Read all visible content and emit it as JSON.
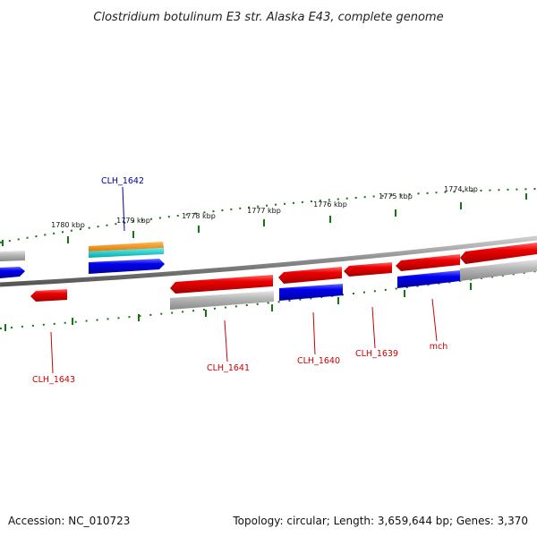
{
  "title": "Clostridium botulinum E3 str. Alaska E43, complete genome",
  "footer": {
    "accession": "Accession: NC_010723",
    "summary": "Topology: circular; Length: 3,659,644 bp; Genes: 3,370"
  },
  "ticks": [
    "1780 kbp",
    "1779 kbp",
    "1778 kbp",
    "1777 kbp",
    "1776 kbp",
    "1775 kbp",
    "1774 kbp"
  ],
  "genes": [
    {
      "id": "CLH_1643",
      "label": "CLH_1643",
      "color": "#cc0000"
    },
    {
      "id": "CLH_1642",
      "label": "CLH_1642",
      "color": "#000099"
    },
    {
      "id": "CLH_1641",
      "label": "CLH_1641",
      "color": "#cc0000"
    },
    {
      "id": "CLH_1640",
      "label": "CLH_1640",
      "color": "#cc0000"
    },
    {
      "id": "CLH_1639",
      "label": "CLH_1639",
      "color": "#cc0000"
    },
    {
      "id": "mch",
      "label": "mch",
      "color": "#cc0000"
    }
  ],
  "colors": {
    "cds_red": "#ee0000",
    "cds_blue": "#0000ee",
    "rna_orange": "#ee8800",
    "rna_cyan": "#00cccc",
    "backbone_gray": "#999999",
    "tick_green": "#117711"
  }
}
